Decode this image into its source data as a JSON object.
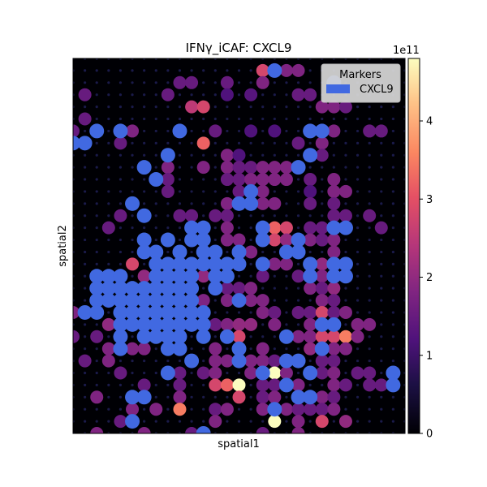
{
  "chart_data": {
    "type": "scatter",
    "title": "IFNγ_iCAF: CXCL9",
    "xlabel": "spatial1",
    "ylabel": "spatial2",
    "colorbar": {
      "ticks": [
        0,
        1,
        2,
        3,
        4
      ],
      "tick_labels": [
        "0",
        "1",
        "2",
        "3",
        "4"
      ],
      "exponent_label": "1e11",
      "range": [
        0,
        4.8
      ],
      "colormap": "magma"
    },
    "legend": {
      "title": "Markers",
      "placement": "top-right",
      "entries": [
        {
          "label": "CXCL9",
          "color": "#4169e1"
        }
      ]
    },
    "grid": false,
    "xlim": [
      0,
      28
    ],
    "ylim": [
      0,
      31
    ],
    "marker_color": "#4169e1",
    "marker_points": [
      [
        17,
        30
      ],
      [
        22,
        29
      ],
      [
        4,
        25
      ],
      [
        9,
        25
      ],
      [
        2,
        25
      ],
      [
        20,
        25
      ],
      [
        21,
        25
      ],
      [
        1,
        24
      ],
      [
        0,
        24
      ],
      [
        8,
        23
      ],
      [
        20,
        23
      ],
      [
        6,
        22
      ],
      [
        19,
        22
      ],
      [
        7,
        21
      ],
      [
        15,
        20
      ],
      [
        15,
        19
      ],
      [
        5,
        19
      ],
      [
        14,
        19
      ],
      [
        6,
        18
      ],
      [
        10,
        17
      ],
      [
        11,
        17
      ],
      [
        16,
        17
      ],
      [
        22,
        17
      ],
      [
        23,
        17
      ],
      [
        16,
        16
      ],
      [
        19,
        16
      ],
      [
        10,
        16
      ],
      [
        11,
        16
      ],
      [
        6,
        16
      ],
      [
        8,
        16
      ],
      [
        6,
        15
      ],
      [
        9,
        15
      ],
      [
        11,
        15
      ],
      [
        12,
        15
      ],
      [
        14,
        15
      ],
      [
        18,
        15
      ],
      [
        19,
        15
      ],
      [
        7,
        15
      ],
      [
        20,
        14
      ],
      [
        22,
        14
      ],
      [
        23,
        14
      ],
      [
        16,
        14
      ],
      [
        13,
        14
      ],
      [
        14,
        14
      ],
      [
        7,
        14
      ],
      [
        8,
        14
      ],
      [
        9,
        14
      ],
      [
        10,
        14
      ],
      [
        11,
        14
      ],
      [
        12,
        14
      ],
      [
        2,
        13
      ],
      [
        3,
        13
      ],
      [
        4,
        13
      ],
      [
        7,
        13
      ],
      [
        8,
        13
      ],
      [
        9,
        13
      ],
      [
        10,
        13
      ],
      [
        12,
        13
      ],
      [
        13,
        13
      ],
      [
        20,
        13
      ],
      [
        22,
        13
      ],
      [
        23,
        13
      ],
      [
        3,
        12
      ],
      [
        4,
        12
      ],
      [
        5,
        12
      ],
      [
        6,
        12
      ],
      [
        7,
        12
      ],
      [
        8,
        12
      ],
      [
        9,
        12
      ],
      [
        10,
        12
      ],
      [
        12,
        12
      ],
      [
        2,
        12
      ],
      [
        3,
        11
      ],
      [
        4,
        11
      ],
      [
        5,
        11
      ],
      [
        6,
        11
      ],
      [
        7,
        11
      ],
      [
        8,
        11
      ],
      [
        9,
        11
      ],
      [
        10,
        11
      ],
      [
        14,
        11
      ],
      [
        2,
        11
      ],
      [
        1,
        10
      ],
      [
        2,
        10
      ],
      [
        4,
        10
      ],
      [
        5,
        10
      ],
      [
        6,
        10
      ],
      [
        7,
        10
      ],
      [
        8,
        10
      ],
      [
        9,
        10
      ],
      [
        10,
        10
      ],
      [
        11,
        10
      ],
      [
        4,
        9
      ],
      [
        5,
        9
      ],
      [
        6,
        9
      ],
      [
        7,
        9
      ],
      [
        8,
        9
      ],
      [
        9,
        9
      ],
      [
        10,
        9
      ],
      [
        11,
        9
      ],
      [
        21,
        9
      ],
      [
        22,
        9
      ],
      [
        4,
        8
      ],
      [
        6,
        8
      ],
      [
        7,
        8
      ],
      [
        8,
        8
      ],
      [
        9,
        8
      ],
      [
        11,
        8
      ],
      [
        13,
        8
      ],
      [
        18,
        8
      ],
      [
        4,
        7
      ],
      [
        8,
        7
      ],
      [
        9,
        7
      ],
      [
        21,
        7
      ],
      [
        14,
        7
      ],
      [
        10,
        6
      ],
      [
        14,
        6
      ],
      [
        18,
        6
      ],
      [
        19,
        6
      ],
      [
        8,
        5
      ],
      [
        16,
        5
      ],
      [
        20,
        5
      ],
      [
        27,
        5
      ],
      [
        29,
        5
      ],
      [
        27,
        4
      ],
      [
        18,
        4
      ],
      [
        5,
        3
      ],
      [
        20,
        3
      ],
      [
        6,
        3
      ],
      [
        29,
        3
      ],
      [
        17,
        2
      ],
      [
        19,
        3
      ],
      [
        5,
        1
      ],
      [
        11,
        0
      ]
    ],
    "value_points": [
      [
        16,
        30,
        2.8
      ],
      [
        18,
        30,
        1.8
      ],
      [
        19,
        30,
        1.8
      ],
      [
        9,
        29,
        1.5
      ],
      [
        10,
        29,
        1.5
      ],
      [
        13,
        29,
        1.5
      ],
      [
        16,
        29,
        1.8
      ],
      [
        1,
        28,
        1.5
      ],
      [
        8,
        28,
        1.5
      ],
      [
        10,
        27,
        2.5
      ],
      [
        11,
        27,
        2.8
      ],
      [
        13,
        28,
        1.2
      ],
      [
        15,
        28,
        1.3
      ],
      [
        19,
        28,
        1.5
      ],
      [
        20,
        28,
        1.5
      ],
      [
        21,
        27,
        1.8
      ],
      [
        22,
        27,
        1.8
      ],
      [
        23,
        27,
        1.5
      ],
      [
        1,
        26,
        1.5
      ],
      [
        0,
        25,
        1.5
      ],
      [
        5,
        25,
        1.8
      ],
      [
        12,
        25,
        1.5
      ],
      [
        15,
        25,
        1.2
      ],
      [
        17,
        25,
        1.2
      ],
      [
        21,
        25,
        1.5
      ],
      [
        22,
        25,
        1.8
      ],
      [
        25,
        25,
        1.5
      ],
      [
        26,
        25,
        1.5
      ],
      [
        1,
        24,
        1.5
      ],
      [
        4,
        24,
        1.5
      ],
      [
        11,
        24,
        3.2
      ],
      [
        19,
        24,
        1.5
      ],
      [
        21,
        24,
        1.8
      ],
      [
        13,
        23,
        1.8
      ],
      [
        14,
        23,
        1.2
      ],
      [
        8,
        23,
        1.8
      ],
      [
        21,
        23,
        1.5
      ],
      [
        29,
        23,
        1.5
      ],
      [
        8,
        22,
        1.8
      ],
      [
        13,
        22,
        1.8
      ],
      [
        14,
        22,
        1.5
      ],
      [
        15,
        22,
        1.5
      ],
      [
        16,
        22,
        1.8
      ],
      [
        17,
        22,
        1.8
      ],
      [
        18,
        22,
        1.8
      ],
      [
        11,
        22,
        1.8
      ],
      [
        13,
        21,
        1.5
      ],
      [
        14,
        21,
        1.5
      ],
      [
        15,
        21,
        1.8
      ],
      [
        16,
        21,
        1.8
      ],
      [
        17,
        21,
        1.8
      ],
      [
        18,
        21,
        1.8
      ],
      [
        20,
        21,
        1.5
      ],
      [
        22,
        21,
        1.8
      ],
      [
        8,
        21,
        1.5
      ],
      [
        8,
        20,
        1.5
      ],
      [
        14,
        20,
        1.5
      ],
      [
        16,
        20,
        1.8
      ],
      [
        20,
        20,
        1.2
      ],
      [
        22,
        20,
        1.8
      ],
      [
        23,
        20,
        1.8
      ],
      [
        13,
        19,
        1.8
      ],
      [
        14,
        19,
        1.5
      ],
      [
        16,
        19,
        1.8
      ],
      [
        17,
        19,
        1.8
      ],
      [
        20,
        19,
        1.5
      ],
      [
        22,
        19,
        1.5
      ],
      [
        22,
        18,
        1.5
      ],
      [
        23,
        18,
        1.5
      ],
      [
        25,
        18,
        1.5
      ],
      [
        4,
        18,
        1.5
      ],
      [
        9,
        18,
        1.5
      ],
      [
        10,
        18,
        1.5
      ],
      [
        12,
        18,
        1.5
      ],
      [
        13,
        18,
        1.5
      ],
      [
        3,
        17,
        1.5
      ],
      [
        13,
        17,
        1.8
      ],
      [
        17,
        17,
        3.2
      ],
      [
        18,
        17,
        2.8
      ],
      [
        20,
        17,
        1.5
      ],
      [
        21,
        17,
        1.5
      ],
      [
        22,
        17,
        1.5
      ],
      [
        23,
        17,
        1.8
      ],
      [
        26,
        17,
        1.5
      ],
      [
        13,
        16,
        1.8
      ],
      [
        14,
        16,
        1.8
      ],
      [
        16,
        16,
        3.0
      ],
      [
        17,
        16,
        2.8
      ],
      [
        18,
        16,
        2.0
      ],
      [
        19,
        16,
        2.8
      ],
      [
        20,
        16,
        1.8
      ],
      [
        21,
        16,
        1.5
      ],
      [
        22,
        16,
        1.8
      ],
      [
        14,
        15,
        1.8
      ],
      [
        15,
        15,
        1.8
      ],
      [
        22,
        15,
        1.8
      ],
      [
        5,
        14,
        2.8
      ],
      [
        17,
        14,
        1.8
      ],
      [
        18,
        14,
        1.8
      ],
      [
        21,
        14,
        2.0
      ],
      [
        6,
        13,
        2.0
      ],
      [
        7,
        13,
        2.0
      ],
      [
        11,
        13,
        2.0
      ],
      [
        16,
        13,
        1.5
      ],
      [
        19,
        13,
        1.5
      ],
      [
        21,
        13,
        1.8
      ],
      [
        22,
        13,
        1.5
      ],
      [
        23,
        13,
        1.8
      ],
      [
        3,
        12,
        1.5
      ],
      [
        6,
        12,
        2.0
      ],
      [
        10,
        12,
        2.0
      ],
      [
        13,
        12,
        1.5
      ],
      [
        14,
        12,
        1.5
      ],
      [
        15,
        12,
        1.8
      ],
      [
        20,
        12,
        1.8
      ],
      [
        21,
        12,
        1.5
      ],
      [
        22,
        12,
        2.0
      ],
      [
        5,
        11,
        1.8
      ],
      [
        11,
        11,
        1.8
      ],
      [
        13,
        11,
        1.8
      ],
      [
        14,
        11,
        1.8
      ],
      [
        15,
        11,
        1.8
      ],
      [
        16,
        11,
        1.8
      ],
      [
        21,
        11,
        1.8
      ],
      [
        22,
        11,
        1.5
      ],
      [
        0,
        10,
        1.8
      ],
      [
        1,
        10,
        1.8
      ],
      [
        16,
        10,
        1.8
      ],
      [
        17,
        10,
        1.5
      ],
      [
        19,
        10,
        1.5
      ],
      [
        20,
        10,
        1.5
      ],
      [
        21,
        10,
        2.8
      ],
      [
        22,
        10,
        1.5
      ],
      [
        23,
        10,
        1.8
      ],
      [
        3,
        9,
        2.0
      ],
      [
        5,
        9,
        1.5
      ],
      [
        12,
        9,
        1.5
      ],
      [
        13,
        9,
        1.8
      ],
      [
        14,
        9,
        2.0
      ],
      [
        15,
        9,
        2.0
      ],
      [
        17,
        9,
        1.8
      ],
      [
        20,
        9,
        1.8
      ],
      [
        21,
        9,
        1.8
      ],
      [
        24,
        9,
        1.8
      ],
      [
        25,
        9,
        1.8
      ],
      [
        0,
        8,
        1.5
      ],
      [
        2,
        8,
        1.5
      ],
      [
        13,
        8,
        2.8
      ],
      [
        14,
        8,
        2.8
      ],
      [
        19,
        8,
        1.8
      ],
      [
        20,
        8,
        1.8
      ],
      [
        21,
        8,
        2.8
      ],
      [
        22,
        8,
        2.8
      ],
      [
        23,
        8,
        3.5
      ],
      [
        24,
        8,
        1.8
      ],
      [
        3,
        7,
        1.8
      ],
      [
        5,
        7,
        1.8
      ],
      [
        6,
        7,
        1.8
      ],
      [
        9,
        7,
        1.5
      ],
      [
        12,
        7,
        1.8
      ],
      [
        14,
        7,
        1.5
      ],
      [
        16,
        7,
        1.8
      ],
      [
        20,
        7,
        2.0
      ],
      [
        21,
        7,
        1.8
      ],
      [
        22,
        7,
        1.8
      ],
      [
        23,
        7,
        1.8
      ],
      [
        1,
        6,
        1.5
      ],
      [
        3,
        6,
        1.8
      ],
      [
        12,
        6,
        1.8
      ],
      [
        13,
        6,
        1.8
      ],
      [
        15,
        6,
        1.8
      ],
      [
        16,
        6,
        1.8
      ],
      [
        17,
        6,
        1.5
      ],
      [
        18,
        6,
        1.5
      ],
      [
        21,
        6,
        1.5
      ],
      [
        22,
        6,
        1.5
      ],
      [
        4,
        5,
        1.5
      ],
      [
        9,
        5,
        1.5
      ],
      [
        11,
        5,
        1.5
      ],
      [
        12,
        5,
        1.8
      ],
      [
        15,
        5,
        1.8
      ],
      [
        16,
        5,
        1.8
      ],
      [
        17,
        5,
        4.8
      ],
      [
        18,
        5,
        1.8
      ],
      [
        20,
        5,
        1.5
      ],
      [
        21,
        5,
        1.5
      ],
      [
        22,
        5,
        1.8
      ],
      [
        24,
        5,
        1.5
      ],
      [
        25,
        5,
        1.5
      ],
      [
        6,
        4,
        1.5
      ],
      [
        9,
        4,
        1.5
      ],
      [
        12,
        4,
        2.8
      ],
      [
        13,
        4,
        3.2
      ],
      [
        14,
        4,
        4.8
      ],
      [
        16,
        4,
        1.5
      ],
      [
        17,
        4,
        1.5
      ],
      [
        19,
        4,
        1.8
      ],
      [
        22,
        4,
        1.8
      ],
      [
        23,
        4,
        1.5
      ],
      [
        25,
        4,
        1.5
      ],
      [
        26,
        4,
        1.5
      ],
      [
        2,
        3,
        1.8
      ],
      [
        9,
        3,
        1.8
      ],
      [
        14,
        3,
        2.8
      ],
      [
        16,
        3,
        1.5
      ],
      [
        17,
        3,
        1.8
      ],
      [
        19,
        3,
        1.5
      ],
      [
        20,
        3,
        1.5
      ],
      [
        21,
        3,
        1.8
      ],
      [
        22,
        3,
        1.5
      ],
      [
        5,
        2,
        1.8
      ],
      [
        7,
        2,
        1.8
      ],
      [
        9,
        2,
        3.5
      ],
      [
        12,
        2,
        1.5
      ],
      [
        13,
        2,
        1.8
      ],
      [
        16,
        2,
        1.8
      ],
      [
        18,
        2,
        1.8
      ],
      [
        19,
        2,
        1.5
      ],
      [
        20,
        2,
        1.5
      ],
      [
        21,
        2,
        1.5
      ],
      [
        22,
        2,
        1.8
      ],
      [
        4,
        1,
        1.5
      ],
      [
        12,
        1,
        1.8
      ],
      [
        17,
        1,
        4.8
      ],
      [
        19,
        1,
        1.8
      ],
      [
        21,
        1,
        2.8
      ],
      [
        23,
        1,
        2.0
      ],
      [
        2,
        0,
        1.8
      ],
      [
        6,
        0,
        1.8
      ],
      [
        10,
        0,
        1.5
      ],
      [
        16,
        0,
        1.5
      ],
      [
        19,
        0,
        1.8
      ]
    ]
  }
}
